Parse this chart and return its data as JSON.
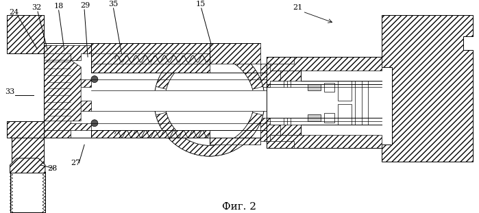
{
  "title": "Фиг. 2",
  "bg_color": "#ffffff",
  "line_color": "#000000",
  "fig_width": 6.99,
  "fig_height": 3.11,
  "labels": [
    "24",
    "32",
    "18",
    "29",
    "35",
    "15",
    "21",
    "33",
    "28",
    "27"
  ]
}
